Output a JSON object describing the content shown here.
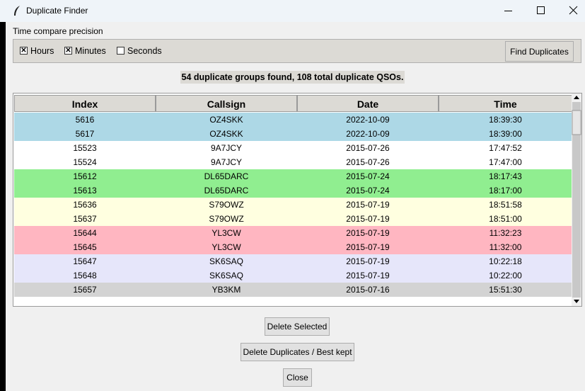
{
  "window": {
    "title": "Duplicate Finder"
  },
  "precision": {
    "label": "Time compare precision",
    "options": [
      {
        "label": "Hours",
        "checked": true
      },
      {
        "label": "Minutes",
        "checked": true
      },
      {
        "label": "Seconds",
        "checked": false
      }
    ],
    "button": "Find Duplicates"
  },
  "status": "54 duplicate groups found, 108 total duplicate QSOs.",
  "table": {
    "columns": [
      "Index",
      "Callsign",
      "Date",
      "Time"
    ],
    "rows": [
      [
        "5616",
        "OZ4SKK",
        "2022-10-09",
        "18:39:30"
      ],
      [
        "5617",
        "OZ4SKK",
        "2022-10-09",
        "18:39:00"
      ],
      [
        "15523",
        "9A7JCY",
        "2015-07-26",
        "17:47:52"
      ],
      [
        "15524",
        "9A7JCY",
        "2015-07-26",
        "17:47:00"
      ],
      [
        "15612",
        "DL65DARC",
        "2015-07-24",
        "18:17:43"
      ],
      [
        "15613",
        "DL65DARC",
        "2015-07-24",
        "18:17:00"
      ],
      [
        "15636",
        "S79OWZ",
        "2015-07-19",
        "18:51:58"
      ],
      [
        "15637",
        "S79OWZ",
        "2015-07-19",
        "18:51:00"
      ],
      [
        "15644",
        "YL3CW",
        "2015-07-19",
        "11:32:23"
      ],
      [
        "15645",
        "YL3CW",
        "2015-07-19",
        "11:32:00"
      ],
      [
        "15647",
        "SK6SAQ",
        "2015-07-19",
        "10:22:18"
      ],
      [
        "15648",
        "SK6SAQ",
        "2015-07-19",
        "10:22:00"
      ],
      [
        "15657",
        "YB3KM",
        "2015-07-16",
        "15:51:30"
      ]
    ],
    "row_colors": [
      "#add8e6",
      "#add8e6",
      "#ffffff",
      "#ffffff",
      "#90ee90",
      "#90ee90",
      "#ffffe0",
      "#ffffe0",
      "#ffb6c1",
      "#ffb6c1",
      "#e6e6fa",
      "#e6e6fa",
      "#d3d3d3"
    ]
  },
  "buttons": [
    "Delete Selected",
    "Delete Duplicates / Best kept",
    "Close"
  ]
}
